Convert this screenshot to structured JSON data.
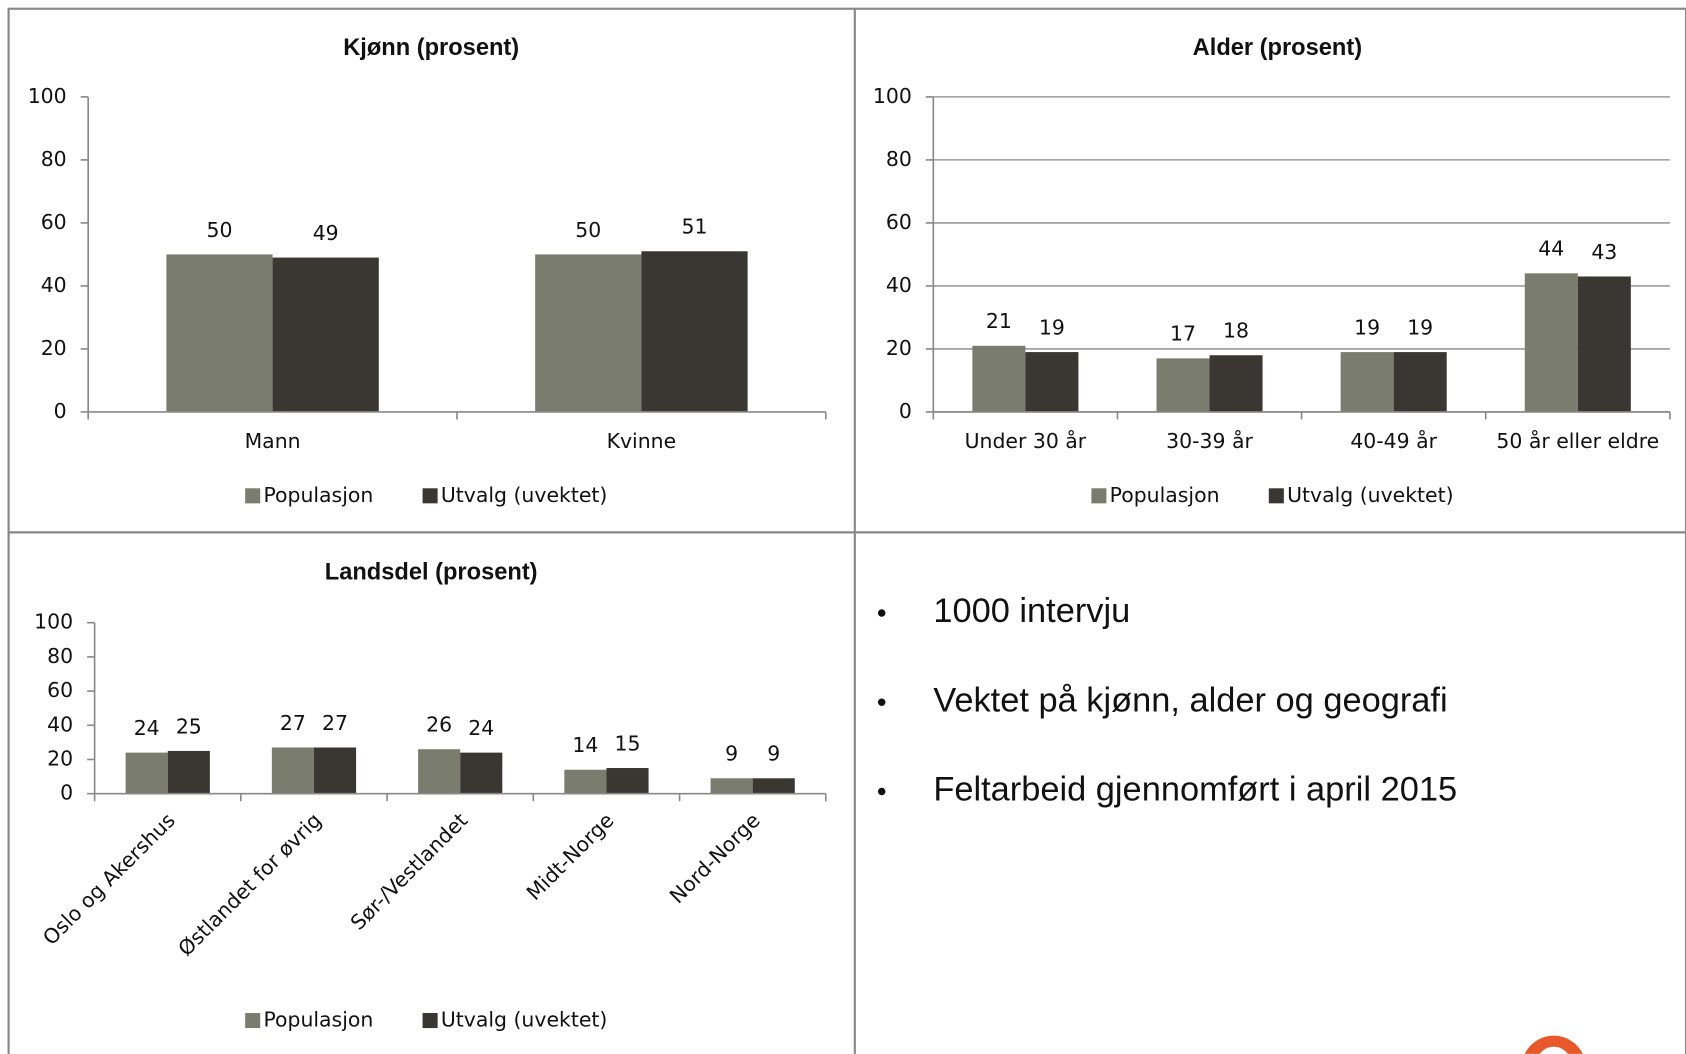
{
  "chart_data": [
    {
      "type": "bar",
      "title": "Kjønn (prosent)",
      "categories": [
        "Mann",
        "Kvinne"
      ],
      "series": [
        {
          "name": "Populasjon",
          "color": "#7a7d6e",
          "values": [
            50,
            50
          ]
        },
        {
          "name": "Utvalg (uvektet)",
          "color": "#3a3632",
          "values": [
            49,
            51
          ]
        }
      ],
      "ylim": [
        0,
        100
      ],
      "yticks": [
        0,
        20,
        40,
        60,
        80,
        100
      ],
      "grid": false,
      "legend": "bottom"
    },
    {
      "type": "bar",
      "title": "Alder (prosent)",
      "categories": [
        "Under 30 år",
        "30-39 år",
        "40-49 år",
        "50 år eller eldre"
      ],
      "series": [
        {
          "name": "Populasjon",
          "color": "#7a7d6e",
          "values": [
            21,
            17,
            19,
            44
          ]
        },
        {
          "name": "Utvalg (uvektet)",
          "color": "#3a3632",
          "values": [
            19,
            18,
            19,
            43
          ]
        }
      ],
      "ylim": [
        0,
        100
      ],
      "yticks": [
        0,
        20,
        40,
        60,
        80,
        100
      ],
      "grid": true,
      "legend": "bottom"
    },
    {
      "type": "bar",
      "title": "Landsdel (prosent)",
      "categories": [
        "Oslo og Akershus",
        "Østlandet for øvrig",
        "Sør-/Vestlandet",
        "Midt-Norge",
        "Nord-Norge"
      ],
      "series": [
        {
          "name": "Populasjon",
          "color": "#7a7d6e",
          "values": [
            24,
            27,
            26,
            14,
            9
          ]
        },
        {
          "name": "Utvalg (uvektet)",
          "color": "#3a3632",
          "values": [
            25,
            27,
            24,
            15,
            9
          ]
        }
      ],
      "ylim": [
        0,
        100
      ],
      "yticks": [
        0,
        20,
        40,
        60,
        80,
        100
      ],
      "grid": false,
      "legend": "bottom"
    }
  ],
  "bullets": [
    "1000 intervju",
    "Vektet på kjønn, alder og geografi",
    "Feltarbeid gjennomført i april 2015"
  ]
}
